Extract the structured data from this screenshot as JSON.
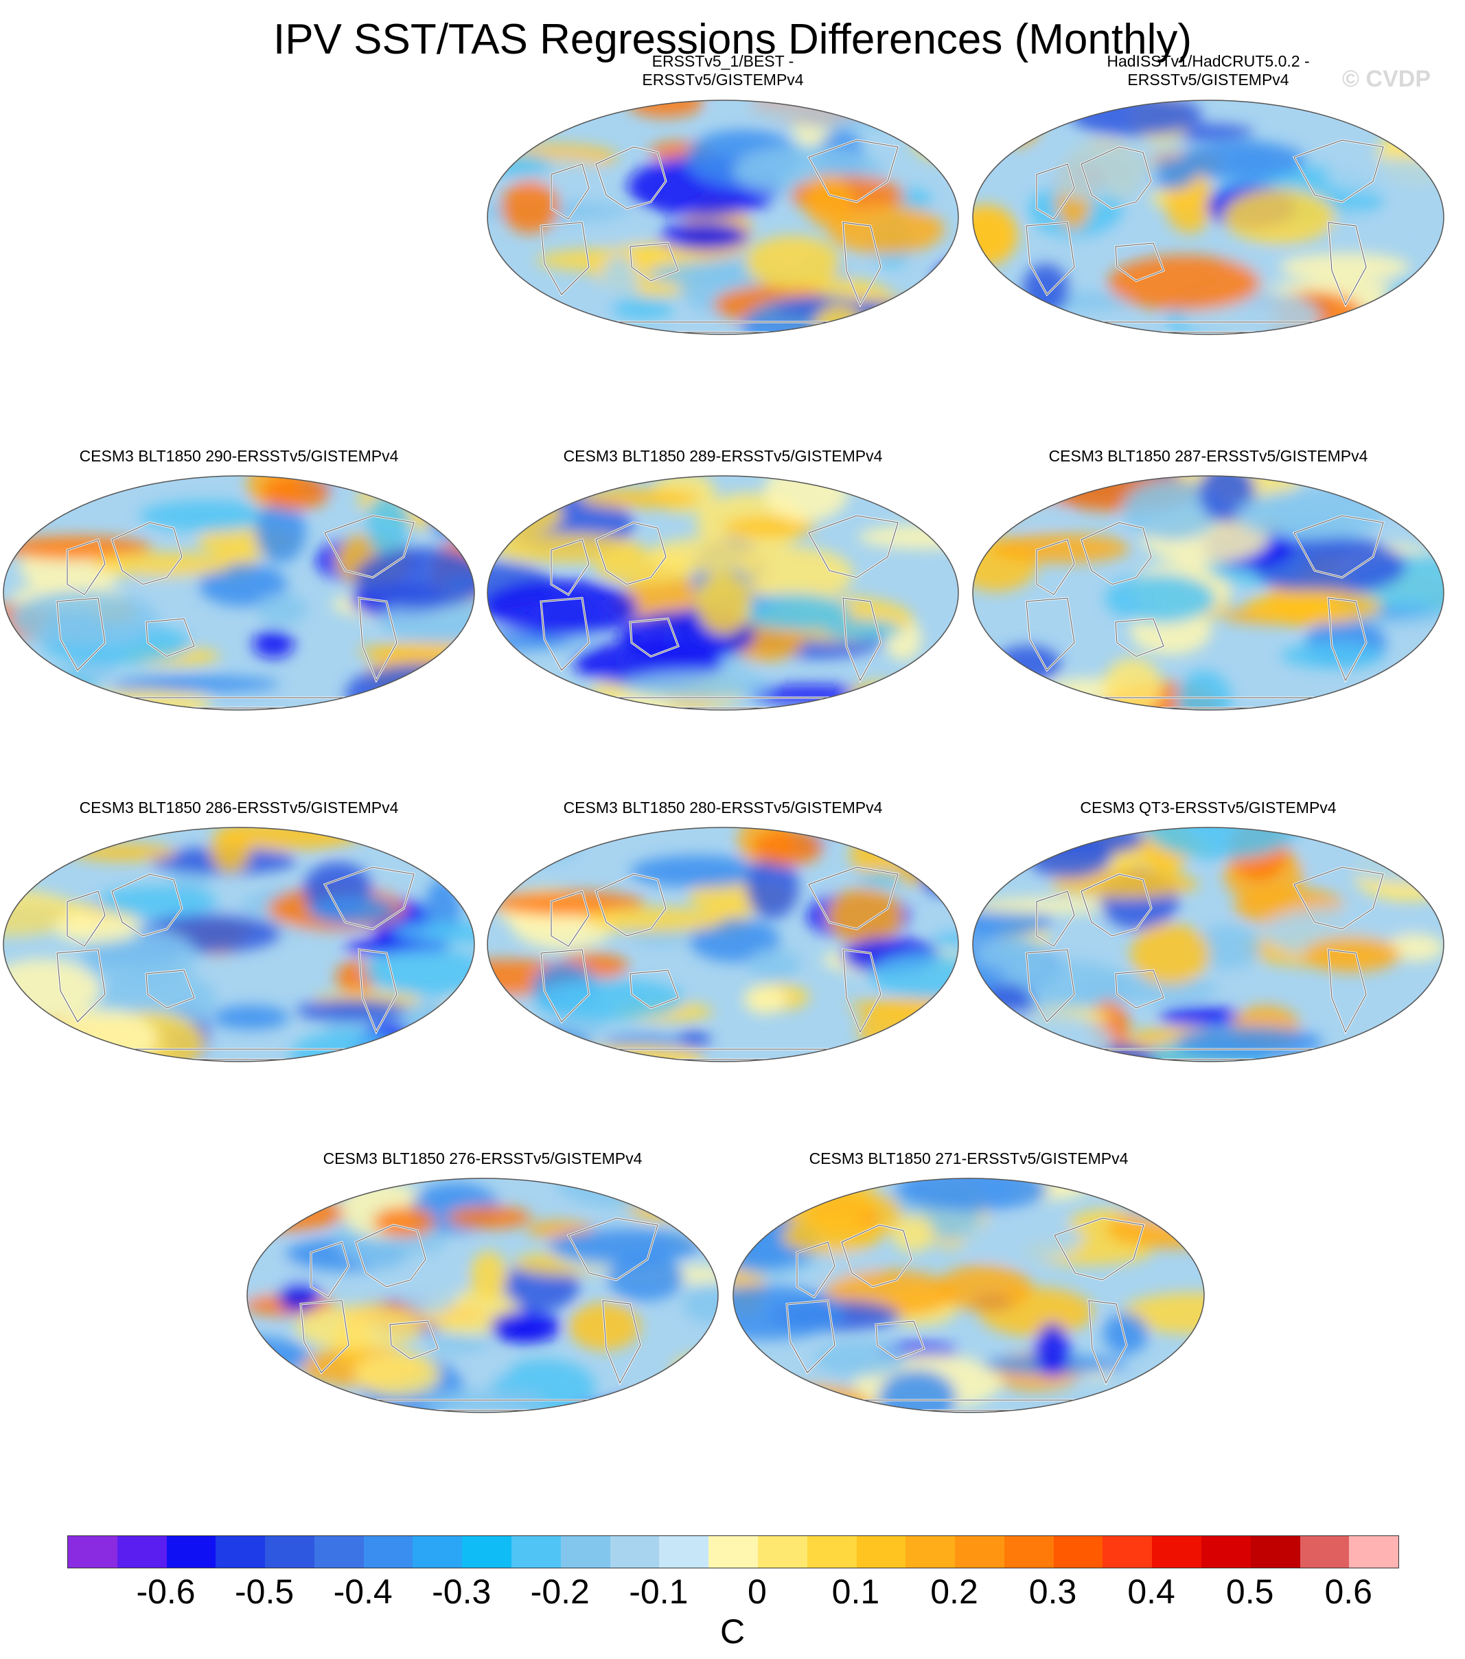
{
  "title": "IPV SST/TAS Regressions Differences (Monthly)",
  "watermark": "© CVDP",
  "panels": [
    {
      "id": "p1",
      "title": "ERSSTv5_1/BEST -\nERSSTv5/GISTEMPv4"
    },
    {
      "id": "p2",
      "title": "HadISSTv1/HadCRUT5.0.2 -\nERSSTv5/GISTEMPv4"
    },
    {
      "id": "p3",
      "title": "CESM3 BLT1850 290-ERSSTv5/GISTEMPv4"
    },
    {
      "id": "p4",
      "title": "CESM3 BLT1850 289-ERSSTv5/GISTEMPv4"
    },
    {
      "id": "p5",
      "title": "CESM3 BLT1850 287-ERSSTv5/GISTEMPv4"
    },
    {
      "id": "p6",
      "title": "CESM3 BLT1850 286-ERSSTv5/GISTEMPv4"
    },
    {
      "id": "p7",
      "title": "CESM3 BLT1850 280-ERSSTv5/GISTEMPv4"
    },
    {
      "id": "p8",
      "title": "CESM3 QT3-ERSSTv5/GISTEMPv4"
    },
    {
      "id": "p9",
      "title": "CESM3 BLT1850 276-ERSSTv5/GISTEMPv4"
    },
    {
      "id": "p10",
      "title": "CESM3 BLT1850 271-ERSSTv5/GISTEMPv4"
    }
  ],
  "colorbar": {
    "unit": "C",
    "colors": [
      "#8a2be2",
      "#5a1ef0",
      "#1010f5",
      "#1e3ce8",
      "#2e58e0",
      "#3c74e6",
      "#3a8ef0",
      "#2ba5f5",
      "#10bcf5",
      "#50c4f5",
      "#82c6ee",
      "#a8d4f0",
      "#c7e6f8",
      "#fff7b0",
      "#ffe870",
      "#ffd840",
      "#ffc420",
      "#ffad18",
      "#ff9510",
      "#ff7a08",
      "#ff5a00",
      "#ff3a10",
      "#f01000",
      "#d80000",
      "#c00000",
      "#e06060",
      "#ffb3b3"
    ],
    "tick_labels": [
      "-0.6",
      "-0.5",
      "-0.4",
      "-0.3",
      "-0.2",
      "-0.1",
      "0",
      "0.1",
      "0.2",
      "0.3",
      "0.4",
      "0.5",
      "0.6"
    ]
  }
}
